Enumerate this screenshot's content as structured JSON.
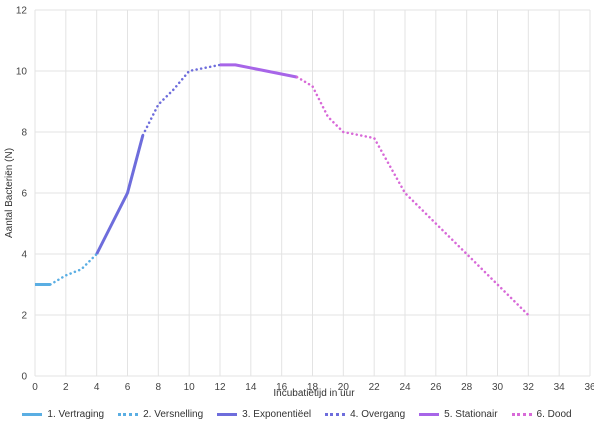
{
  "chart_data": {
    "type": "line",
    "title": "",
    "xlabel": "Incubatietijd in uur",
    "ylabel": "Aantal Bacteriën (N)",
    "xlim": [
      0,
      36
    ],
    "ylim": [
      0,
      12
    ],
    "x_ticks": [
      "0",
      "2",
      "4",
      "6",
      "8",
      "10",
      "12",
      "14",
      "16",
      "18",
      "20",
      "22",
      "24",
      "26",
      "28",
      "30",
      "32",
      "34",
      "36"
    ],
    "y_ticks": [
      "0",
      "2",
      "4",
      "6",
      "8",
      "10",
      "12"
    ],
    "grid": true,
    "legend_position": "bottom",
    "series": [
      {
        "name": "1. Vertraging",
        "color": "#5aaee3",
        "style": "solid",
        "points": [
          [
            0,
            3
          ],
          [
            1,
            3
          ]
        ]
      },
      {
        "name": "2. Versnelling",
        "color": "#5aaee3",
        "style": "dotted",
        "points": [
          [
            1,
            3
          ],
          [
            2,
            3.3
          ],
          [
            3,
            3.5
          ],
          [
            4,
            4
          ]
        ]
      },
      {
        "name": "3. Exponentiëel",
        "color": "#6e6ddc",
        "style": "solid",
        "points": [
          [
            4,
            4
          ],
          [
            5,
            5
          ],
          [
            6,
            6
          ],
          [
            7,
            7.9
          ]
        ]
      },
      {
        "name": "4. Overgang",
        "color": "#6e6ddc",
        "style": "dotted",
        "points": [
          [
            7,
            7.9
          ],
          [
            8,
            8.9
          ],
          [
            9,
            9.4
          ],
          [
            10,
            10
          ],
          [
            11,
            10.1
          ],
          [
            12,
            10.2
          ]
        ]
      },
      {
        "name": "5. Stationair",
        "color": "#a765e8",
        "style": "solid",
        "points": [
          [
            12,
            10.2
          ],
          [
            13,
            10.2
          ],
          [
            15,
            10
          ],
          [
            17,
            9.8
          ]
        ]
      },
      {
        "name": "6. Dood",
        "color": "#d86ad8",
        "style": "dotted",
        "points": [
          [
            17,
            9.8
          ],
          [
            18,
            9.5
          ],
          [
            19,
            8.5
          ],
          [
            20,
            8
          ],
          [
            22,
            7.8
          ],
          [
            24,
            6
          ],
          [
            26,
            5
          ],
          [
            28,
            4
          ],
          [
            30,
            3
          ],
          [
            32,
            2
          ]
        ]
      }
    ]
  }
}
